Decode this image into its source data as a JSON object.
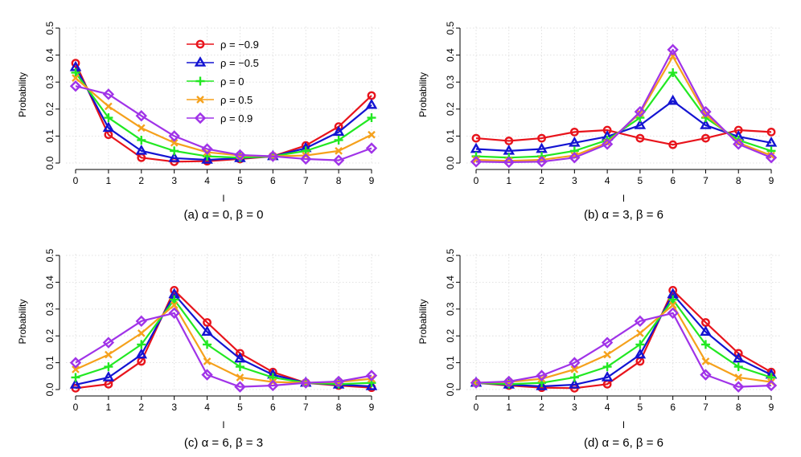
{
  "chart_data": [
    {
      "type": "line",
      "caption": "(a)  α = 0, β = 0",
      "xlabel": "l",
      "ylabel": "Probability",
      "x": [
        0,
        1,
        2,
        3,
        4,
        5,
        6,
        7,
        8,
        9
      ],
      "ylim": [
        0,
        0.5
      ],
      "yticks": [
        "0.0",
        "0.1",
        "0.2",
        "0.3",
        "0.4",
        "0.5"
      ],
      "grid": true,
      "legend": "top-center",
      "series": [
        {
          "name": "ρ = −0.9",
          "color": "#e8141c",
          "marker": "circle",
          "values": [
            0.37,
            0.105,
            0.02,
            0.005,
            0.007,
            0.015,
            0.025,
            0.065,
            0.135,
            0.25
          ]
        },
        {
          "name": "ρ = −0.5",
          "color": "#1414d2",
          "marker": "triangle",
          "values": [
            0.355,
            0.13,
            0.045,
            0.018,
            0.012,
            0.018,
            0.025,
            0.055,
            0.115,
            0.215
          ]
        },
        {
          "name": "ρ = 0",
          "color": "#22e822",
          "marker": "plus",
          "values": [
            0.335,
            0.168,
            0.085,
            0.045,
            0.025,
            0.02,
            0.025,
            0.045,
            0.085,
            0.168
          ]
        },
        {
          "name": "ρ = 0.5",
          "color": "#f5a11c",
          "marker": "cross",
          "values": [
            0.315,
            0.21,
            0.13,
            0.075,
            0.04,
            0.028,
            0.025,
            0.028,
            0.045,
            0.105
          ]
        },
        {
          "name": "ρ = 0.9",
          "color": "#a033e8",
          "marker": "diamond",
          "values": [
            0.285,
            0.255,
            0.175,
            0.1,
            0.052,
            0.03,
            0.025,
            0.015,
            0.01,
            0.055
          ]
        }
      ]
    },
    {
      "type": "line",
      "caption": "(b)  α = 3, β = 6",
      "xlabel": "l",
      "ylabel": "Probability",
      "x": [
        0,
        1,
        2,
        3,
        4,
        5,
        6,
        7,
        8,
        9
      ],
      "ylim": [
        0,
        0.5
      ],
      "yticks": [
        "0.0",
        "0.1",
        "0.2",
        "0.3",
        "0.4",
        "0.5"
      ],
      "grid": true,
      "series": [
        {
          "name": "ρ = −0.9",
          "color": "#e8141c",
          "marker": "circle",
          "values": [
            0.092,
            0.082,
            0.092,
            0.115,
            0.122,
            0.092,
            0.068,
            0.092,
            0.122,
            0.115
          ]
        },
        {
          "name": "ρ = −0.5",
          "color": "#1414d2",
          "marker": "triangle",
          "values": [
            0.052,
            0.045,
            0.052,
            0.075,
            0.098,
            0.14,
            0.23,
            0.14,
            0.098,
            0.075
          ]
        },
        {
          "name": "ρ = 0",
          "color": "#22e822",
          "marker": "plus",
          "values": [
            0.025,
            0.02,
            0.025,
            0.045,
            0.085,
            0.168,
            0.335,
            0.168,
            0.085,
            0.045
          ]
        },
        {
          "name": "ρ = 0.5",
          "color": "#f5a11c",
          "marker": "cross",
          "values": [
            0.012,
            0.008,
            0.012,
            0.028,
            0.075,
            0.185,
            0.395,
            0.18,
            0.075,
            0.028
          ]
        },
        {
          "name": "ρ = 0.9",
          "color": "#a033e8",
          "marker": "diamond",
          "values": [
            0.005,
            0.003,
            0.005,
            0.02,
            0.07,
            0.19,
            0.42,
            0.19,
            0.07,
            0.02
          ]
        }
      ]
    },
    {
      "type": "line",
      "caption": "(c)  α = 6, β = 3",
      "xlabel": "l",
      "ylabel": "Probability",
      "x": [
        0,
        1,
        2,
        3,
        4,
        5,
        6,
        7,
        8,
        9
      ],
      "ylim": [
        0,
        0.5
      ],
      "yticks": [
        "0.0",
        "0.1",
        "0.2",
        "0.3",
        "0.4",
        "0.5"
      ],
      "grid": true,
      "series": [
        {
          "name": "ρ = −0.9",
          "color": "#e8141c",
          "marker": "circle",
          "values": [
            0.005,
            0.02,
            0.105,
            0.37,
            0.25,
            0.135,
            0.065,
            0.025,
            0.015,
            0.007
          ]
        },
        {
          "name": "ρ = −0.5",
          "color": "#1414d2",
          "marker": "triangle",
          "values": [
            0.018,
            0.045,
            0.13,
            0.355,
            0.215,
            0.115,
            0.055,
            0.025,
            0.018,
            0.012
          ]
        },
        {
          "name": "ρ = 0",
          "color": "#22e822",
          "marker": "plus",
          "values": [
            0.045,
            0.085,
            0.168,
            0.335,
            0.168,
            0.085,
            0.045,
            0.025,
            0.02,
            0.025
          ]
        },
        {
          "name": "ρ = 0.5",
          "color": "#f5a11c",
          "marker": "cross",
          "values": [
            0.075,
            0.13,
            0.21,
            0.315,
            0.105,
            0.045,
            0.028,
            0.025,
            0.028,
            0.04
          ]
        },
        {
          "name": "ρ = 0.9",
          "color": "#a033e8",
          "marker": "diamond",
          "values": [
            0.1,
            0.175,
            0.255,
            0.285,
            0.055,
            0.01,
            0.015,
            0.025,
            0.03,
            0.052
          ]
        }
      ]
    },
    {
      "type": "line",
      "caption": "(d)  α = 6, β = 6",
      "xlabel": "l",
      "ylabel": "Probability",
      "x": [
        0,
        1,
        2,
        3,
        4,
        5,
        6,
        7,
        8,
        9
      ],
      "ylim": [
        0,
        0.5
      ],
      "yticks": [
        "0.0",
        "0.1",
        "0.2",
        "0.3",
        "0.4",
        "0.5"
      ],
      "grid": true,
      "series": [
        {
          "name": "ρ = −0.9",
          "color": "#e8141c",
          "marker": "circle",
          "values": [
            0.025,
            0.015,
            0.007,
            0.005,
            0.02,
            0.105,
            0.37,
            0.25,
            0.135,
            0.065
          ]
        },
        {
          "name": "ρ = −0.5",
          "color": "#1414d2",
          "marker": "triangle",
          "values": [
            0.025,
            0.018,
            0.012,
            0.018,
            0.045,
            0.13,
            0.355,
            0.215,
            0.115,
            0.055
          ]
        },
        {
          "name": "ρ = 0",
          "color": "#22e822",
          "marker": "plus",
          "values": [
            0.025,
            0.02,
            0.025,
            0.045,
            0.085,
            0.168,
            0.335,
            0.168,
            0.085,
            0.045
          ]
        },
        {
          "name": "ρ = 0.5",
          "color": "#f5a11c",
          "marker": "cross",
          "values": [
            0.025,
            0.028,
            0.04,
            0.075,
            0.13,
            0.21,
            0.315,
            0.105,
            0.045,
            0.028
          ]
        },
        {
          "name": "ρ = 0.9",
          "color": "#a033e8",
          "marker": "diamond",
          "values": [
            0.025,
            0.03,
            0.052,
            0.1,
            0.175,
            0.255,
            0.285,
            0.055,
            0.01,
            0.015
          ]
        }
      ]
    }
  ]
}
